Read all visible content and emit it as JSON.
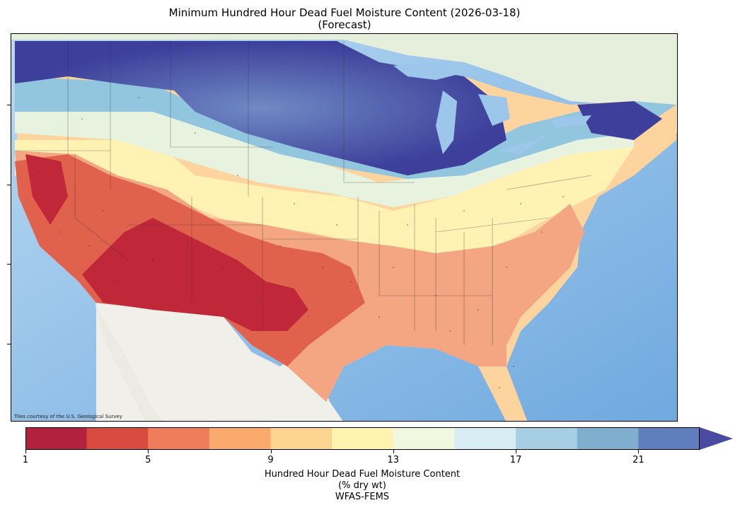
{
  "title": {
    "line1": "Minimum Hundred Hour Dead Fuel Moisture Content (2026-03-18)",
    "line2": "(Forecast)"
  },
  "map": {
    "attribution": "Tiles courtesy of the U.S. Geological Survey",
    "ocean_color": "#a9cfee",
    "land_color": "#eef0ea",
    "mexico_color": "#f1efe9",
    "colors": {
      "very_dry": "#b2182b",
      "dry": "#d6604d",
      "moderate_dry": "#f4a582",
      "moderate": "#fdd49e",
      "neutral": "#fff2b3",
      "moist": "#e7f3df",
      "wet": "#92c5de",
      "very_wet": "#3d3f9a"
    }
  },
  "colorbar": {
    "bounds": [
      1,
      3,
      5,
      7,
      9,
      11,
      13,
      15,
      17,
      19,
      21,
      23
    ],
    "colors": [
      "#b2223e",
      "#d94b3e",
      "#ef7c5a",
      "#f9aa6c",
      "#fdd48f",
      "#fff3b0",
      "#f2f8e0",
      "#d7ecf3",
      "#a7cfe3",
      "#80aecf",
      "#5f7fbc",
      "#4a4ba0"
    ],
    "extend": "max",
    "tick_labels": [
      "1",
      "5",
      "9",
      "13",
      "17",
      "21"
    ],
    "label_line1": "Hundred Hour Dead Fuel Moisture Content",
    "label_line2": "(% dry wt)",
    "label_line3": "WFAS-FEMS"
  }
}
